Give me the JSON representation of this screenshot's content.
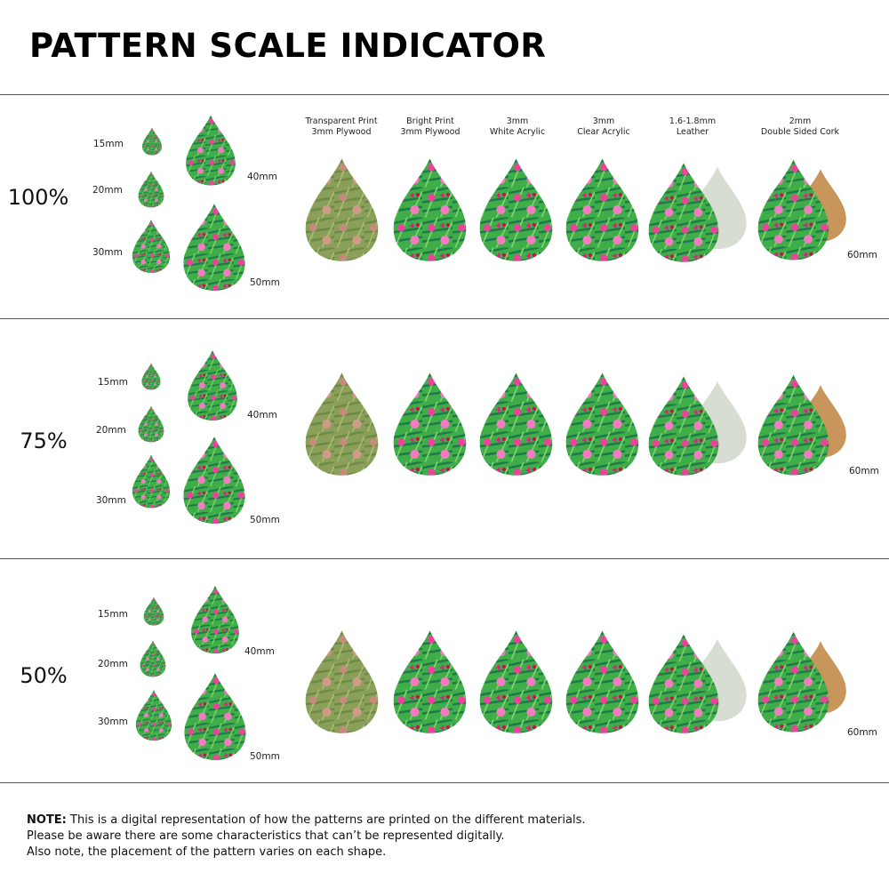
{
  "title": "PATTERN SCALE INDICATOR",
  "materials": [
    {
      "line1": "Transparent Print",
      "line2": "3mm Plywood"
    },
    {
      "line1": "Bright Print",
      "line2": "3mm Plywood"
    },
    {
      "line1": "3mm",
      "line2": "White Acrylic"
    },
    {
      "line1": "3mm",
      "line2": "Clear Acrylic"
    },
    {
      "line1": "1.6-1.8mm",
      "line2": "Leather"
    },
    {
      "line1": "2mm",
      "line2": "Double Sided Cork"
    }
  ],
  "sections": [
    {
      "scale": "100%",
      "sizes": {
        "s15": "15mm",
        "s20": "20mm",
        "s30": "30mm",
        "s40": "40mm",
        "s50": "50mm"
      },
      "large_size": "60mm"
    },
    {
      "scale": "75%",
      "sizes": {
        "s15": "15mm",
        "s20": "20mm",
        "s30": "30mm",
        "s40": "40mm",
        "s50": "50mm"
      },
      "large_size": "60mm"
    },
    {
      "scale": "50%",
      "sizes": {
        "s15": "15mm",
        "s20": "20mm",
        "s30": "30mm",
        "s40": "40mm",
        "s50": "50mm"
      },
      "large_size": "60mm"
    }
  ],
  "note": {
    "label": "NOTE:",
    "line1": " This is a digital representation of how the patterns are printed on the different materials.",
    "line2": "Please be aware there are some characteristics that can’t be represented digitally.",
    "line3": "Also note, the placement of the pattern varies on each shape."
  },
  "colors": {
    "green": "#3fae49",
    "dark_green": "#1f7a4a",
    "pink": "#e8459a",
    "wood": "#8aa05a",
    "leather_back": "#d7ddd2",
    "cork": "#c8955a"
  }
}
